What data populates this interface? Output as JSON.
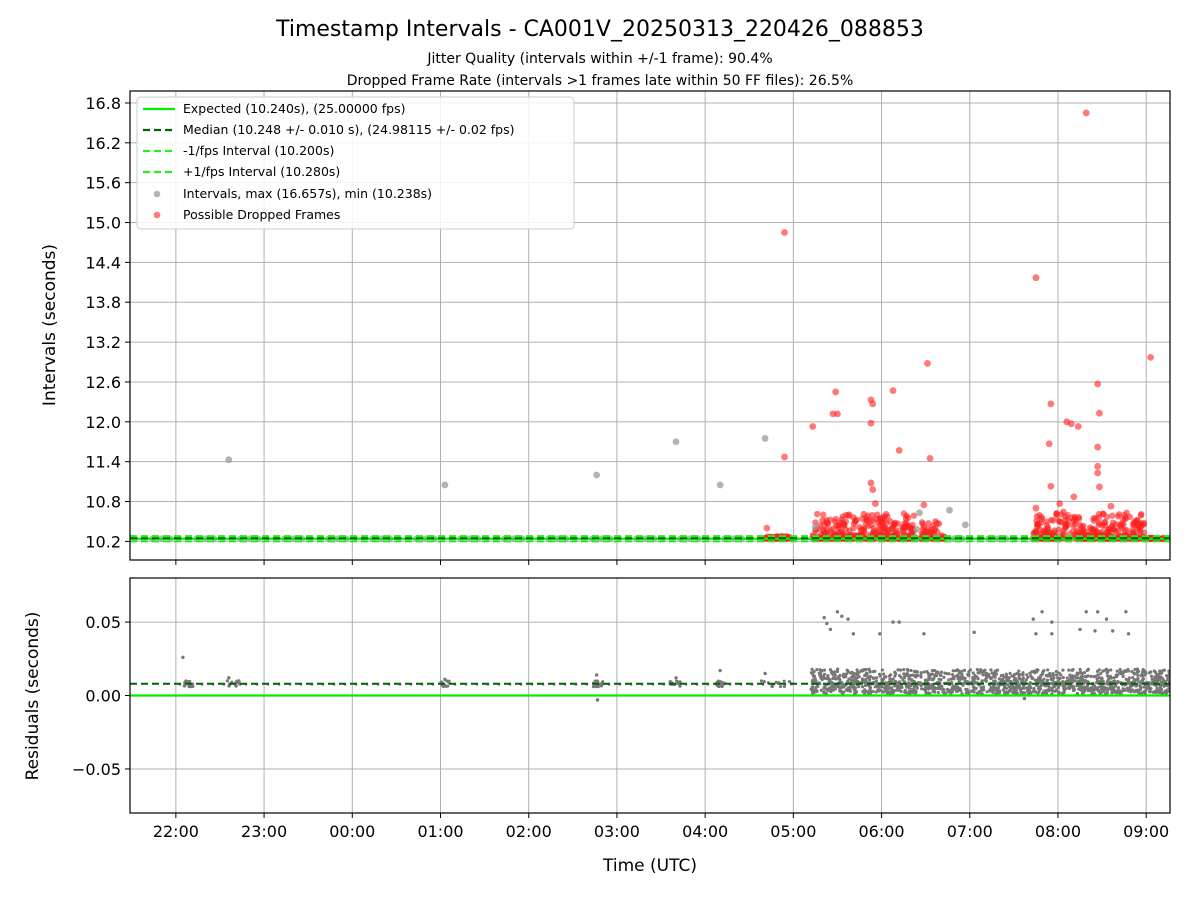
{
  "figure": {
    "title": "Timestamp Intervals - CA001V_20250313_220426_088853",
    "subtitle_1": "Jitter Quality (intervals within +/-1 frame): 90.4%",
    "subtitle_2": "Dropped Frame Rate (intervals >1 frames late within 50 FF files): 26.5%"
  },
  "colors": {
    "expected": "#00ee00",
    "median": "#006400",
    "limits": "#22ee22",
    "intervals": "#999999",
    "dropped": "#ff2020",
    "residuals": "#777777",
    "grid": "#b0b0b0"
  },
  "chart_data": [
    {
      "type": "scatter",
      "panel": "top",
      "ylabel": "Intervals (seconds)",
      "ylim": [
        9.92,
        16.98
      ],
      "yticks": [
        10.2,
        10.8,
        11.4,
        12.0,
        12.6,
        13.2,
        13.8,
        14.4,
        15.0,
        15.6,
        16.2,
        16.8
      ],
      "ytick_labels": [
        "10.2",
        "10.8",
        "11.4",
        "12.0",
        "12.6",
        "13.2",
        "13.8",
        "14.4",
        "15.0",
        "15.6",
        "16.2",
        "16.8"
      ],
      "grid": true,
      "legend_position": "upper-left",
      "lines": {
        "expected": {
          "label": "Expected (10.240s), (25.00000 fps)",
          "y": 10.24,
          "style": "solid"
        },
        "median": {
          "label": "Median (10.248 +/- 0.010 s), (24.98115 +/- 0.02 fps)",
          "y": 10.248,
          "style": "dashed"
        },
        "minus": {
          "label": "-1/fps Interval (10.200s)",
          "y": 10.2,
          "style": "dashed"
        },
        "plus": {
          "label": "+1/fps Interval (10.280s)",
          "y": 10.28,
          "style": "dashed"
        }
      },
      "series": [
        {
          "name": "Intervals, max (16.657s), min (10.238s)",
          "points": [
            [
              22.6,
              11.43
            ],
            [
              1.05,
              11.05
            ],
            [
              2.77,
              11.2
            ],
            [
              3.67,
              11.7
            ],
            [
              4.17,
              11.05
            ],
            [
              4.68,
              11.75
            ],
            [
              6.43,
              10.63
            ],
            [
              6.77,
              10.67
            ],
            [
              6.95,
              10.45
            ],
            [
              6.4,
              10.38
            ],
            [
              5.25,
              10.42
            ]
          ]
        },
        {
          "name": "Possible Dropped Frames",
          "points": [
            [
              4.9,
              14.85
            ],
            [
              4.9,
              11.47
            ],
            [
              5.22,
              11.93
            ],
            [
              5.45,
              12.12
            ],
            [
              5.5,
              12.12
            ],
            [
              5.48,
              12.45
            ],
            [
              5.88,
              12.33
            ],
            [
              5.9,
              12.27
            ],
            [
              5.88,
              11.98
            ],
            [
              6.13,
              12.47
            ],
            [
              6.52,
              12.88
            ],
            [
              6.55,
              11.45
            ],
            [
              6.2,
              11.57
            ],
            [
              5.88,
              11.08
            ],
            [
              5.9,
              10.98
            ],
            [
              5.93,
              10.77
            ],
            [
              4.7,
              10.4
            ],
            [
              7.75,
              14.17
            ],
            [
              8.32,
              16.65
            ],
            [
              9.05,
              12.97
            ],
            [
              7.92,
              12.27
            ],
            [
              8.1,
              12.0
            ],
            [
              8.15,
              11.97
            ],
            [
              8.23,
              11.93
            ],
            [
              7.9,
              11.67
            ],
            [
              8.45,
              12.57
            ],
            [
              8.47,
              12.13
            ],
            [
              8.45,
              11.62
            ],
            [
              8.45,
              11.33
            ],
            [
              8.45,
              11.23
            ],
            [
              8.47,
              11.02
            ],
            [
              7.92,
              11.03
            ],
            [
              7.75,
              10.7
            ],
            [
              8.02,
              10.77
            ],
            [
              8.18,
              10.87
            ],
            [
              8.6,
              10.73
            ],
            [
              6.48,
              10.75
            ]
          ]
        }
      ]
    },
    {
      "type": "scatter",
      "panel": "bottom",
      "ylabel": "Residuals (seconds)",
      "xlabel": "Time (UTC)",
      "ylim": [
        -0.08,
        0.08
      ],
      "yticks": [
        -0.05,
        0.0,
        0.05
      ],
      "ytick_labels": [
        "−0.05",
        "0.00",
        "0.05"
      ],
      "xlim_hours": [
        -2.52,
        9.27
      ],
      "xticks_hours": [
        -2,
        -1,
        0,
        1,
        2,
        3,
        4,
        5,
        6,
        7,
        8,
        9
      ],
      "xtick_labels": [
        "22:00",
        "23:00",
        "00:00",
        "01:00",
        "02:00",
        "03:00",
        "04:00",
        "05:00",
        "06:00",
        "07:00",
        "08:00",
        "09:00"
      ],
      "expected_residual": 0.0,
      "median_residual": 0.008,
      "series": [
        {
          "name": "Residuals",
          "points": [
            [
              22.08,
              0.026
            ],
            [
              22.6,
              0.012
            ],
            [
              1.05,
              0.011
            ],
            [
              2.77,
              0.014
            ],
            [
              2.78,
              -0.003
            ],
            [
              3.67,
              0.012
            ],
            [
              4.17,
              0.017
            ],
            [
              4.68,
              0.015
            ],
            [
              5.35,
              0.053
            ],
            [
              5.38,
              0.049
            ],
            [
              5.5,
              0.057
            ],
            [
              5.55,
              0.054
            ],
            [
              5.42,
              0.045
            ],
            [
              5.62,
              0.052
            ],
            [
              5.68,
              0.042
            ],
            [
              5.98,
              0.042
            ],
            [
              6.13,
              0.05
            ],
            [
              6.2,
              0.05
            ],
            [
              6.48,
              0.042
            ],
            [
              7.05,
              0.043
            ],
            [
              7.72,
              0.052
            ],
            [
              7.82,
              0.057
            ],
            [
              7.93,
              0.05
            ],
            [
              7.75,
              0.042
            ],
            [
              7.93,
              0.042
            ],
            [
              8.25,
              0.045
            ],
            [
              8.32,
              0.057
            ],
            [
              8.42,
              0.044
            ],
            [
              8.45,
              0.057
            ],
            [
              8.55,
              0.052
            ],
            [
              8.62,
              0.044
            ],
            [
              8.77,
              0.057
            ],
            [
              8.8,
              0.042
            ],
            [
              7.62,
              -0.002
            ],
            [
              2.78,
              -0.003
            ]
          ]
        }
      ]
    }
  ]
}
